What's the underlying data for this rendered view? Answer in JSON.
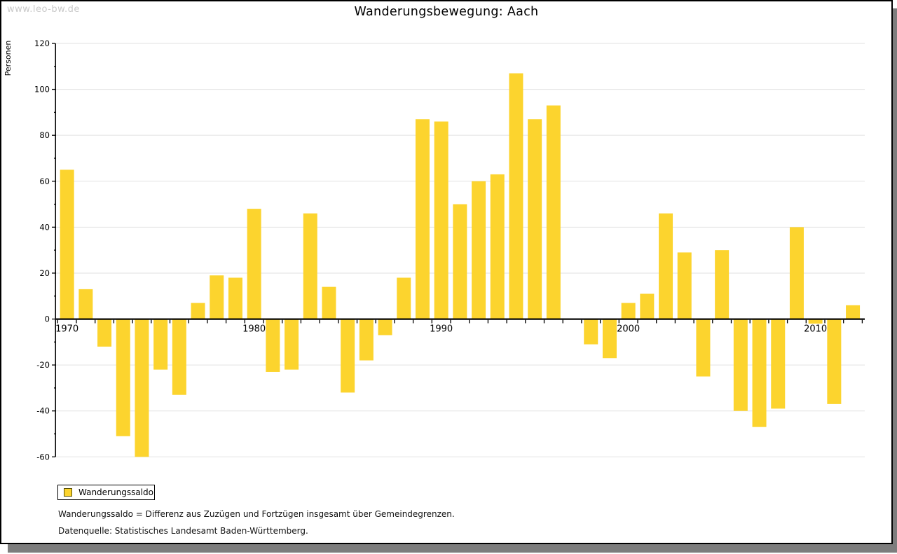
{
  "watermark": "www.leo-bw.de",
  "title": "Wanderungsbewegung: Aach",
  "y_axis_label": "Personen",
  "legend": {
    "label": "Wanderungssaldo"
  },
  "footnotes": [
    "Wanderungssaldo = Differenz aus Zuzügen und Fortzügen insgesamt über Gemeindegrenzen.",
    "Datenquelle: Statistisches Landesamt Baden-Württemberg."
  ],
  "chart_data": {
    "type": "bar",
    "title": "Wanderungsbewegung: Aach",
    "ylabel": "Personen",
    "series_name": "Wanderungssaldo",
    "years": [
      1970,
      1971,
      1972,
      1973,
      1974,
      1975,
      1976,
      1977,
      1978,
      1979,
      1980,
      1981,
      1982,
      1983,
      1984,
      1985,
      1986,
      1987,
      1988,
      1989,
      1990,
      1991,
      1992,
      1993,
      1994,
      1995,
      1996,
      1997,
      1998,
      1999,
      2000,
      2001,
      2002,
      2003,
      2004,
      2005,
      2006,
      2007,
      2008,
      2009,
      2010,
      2011,
      2012
    ],
    "values": [
      65,
      13,
      -12,
      -51,
      -60,
      -22,
      -33,
      7,
      19,
      18,
      48,
      -23,
      -22,
      46,
      14,
      -32,
      -18,
      -7,
      18,
      87,
      86,
      50,
      60,
      63,
      107,
      87,
      93,
      0,
      -11,
      -17,
      7,
      11,
      46,
      29,
      -25,
      30,
      -40,
      -47,
      -39,
      40,
      -2,
      -37,
      6
    ],
    "ylim": [
      -60,
      120
    ],
    "ytick_step": 20,
    "y_minor_step": 10,
    "xtick_label_years": [
      1970,
      1980,
      1990,
      2000,
      2010
    ],
    "grid": true,
    "legend_position": "bottom-left",
    "bar_color": "#fcd42e",
    "grid_color": "#e2e2e2",
    "axis_color": "#000000"
  }
}
